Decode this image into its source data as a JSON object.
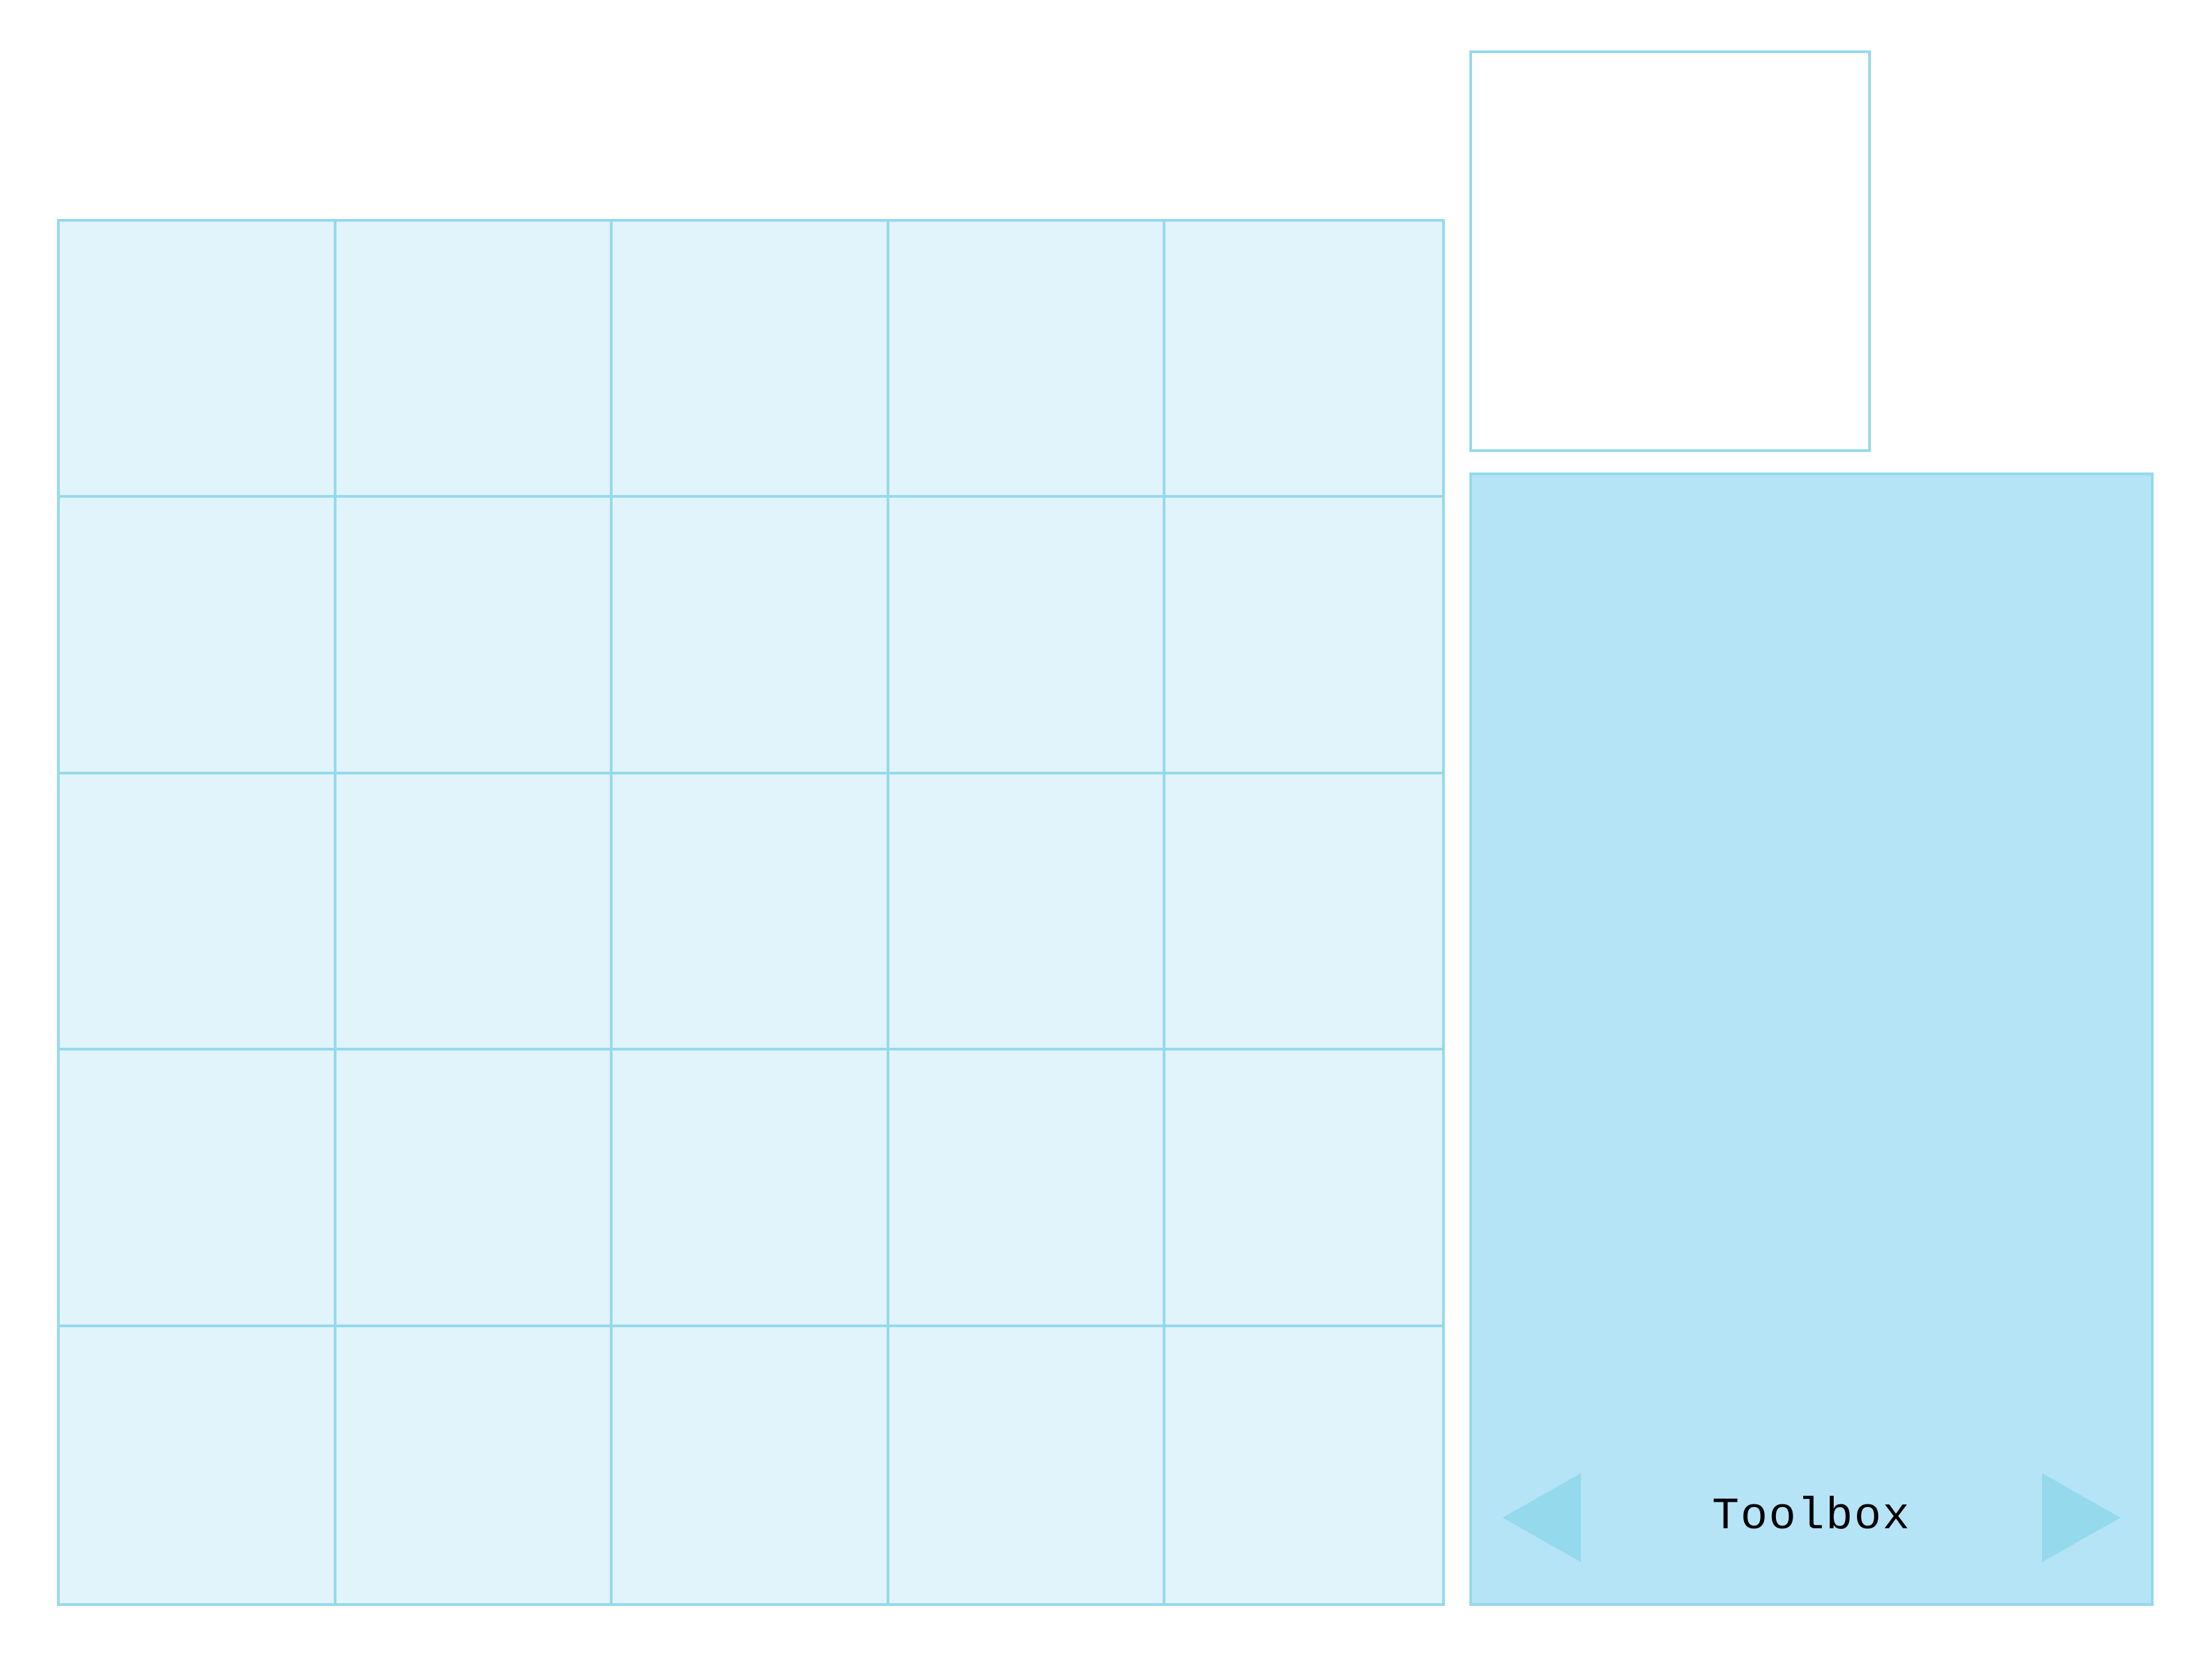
{
  "toolbox": {
    "label": "Toolbox",
    "prev_icon": "triangle-left-icon",
    "next_icon": "triangle-right-icon"
  },
  "board": {
    "rows": 5,
    "cols": 5
  },
  "colors": {
    "board_fill": "#e1f3fb",
    "grid_line": "#94d9ec",
    "toolbox_fill": "#b5e4f7",
    "arrow": "#94d9ec"
  }
}
